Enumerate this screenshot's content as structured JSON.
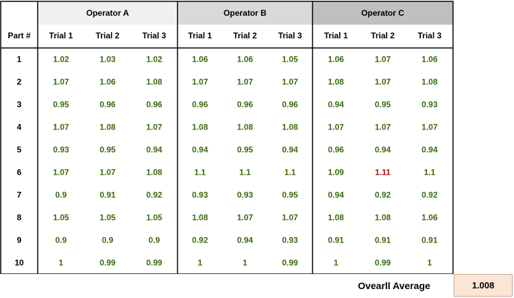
{
  "table": {
    "part_header": "Part #",
    "operators": [
      {
        "name": "Operator A",
        "header_color": "#f0f0f0"
      },
      {
        "name": "Operator B",
        "header_color": "#d9d9d9"
      },
      {
        "name": "Operator C",
        "header_color": "#bfbfbf"
      }
    ],
    "trial_labels": [
      "Trial 1",
      "Trial 2",
      "Trial 3"
    ],
    "value_color": "#3a6b0f",
    "flag_color": "#a01010",
    "rows": [
      {
        "part": "1",
        "values": [
          [
            "1.02",
            "1.03",
            "1.02"
          ],
          [
            "1.06",
            "1.06",
            "1.05"
          ],
          [
            "1.06",
            "1.07",
            "1.06"
          ]
        ]
      },
      {
        "part": "2",
        "values": [
          [
            "1.07",
            "1.06",
            "1.08"
          ],
          [
            "1.07",
            "1.07",
            "1.07"
          ],
          [
            "1.08",
            "1.07",
            "1.08"
          ]
        ]
      },
      {
        "part": "3",
        "values": [
          [
            "0.95",
            "0.96",
            "0.96"
          ],
          [
            "0.96",
            "0.96",
            "0.96"
          ],
          [
            "0.94",
            "0.95",
            "0.93"
          ]
        ]
      },
      {
        "part": "4",
        "values": [
          [
            "1.07",
            "1.08",
            "1.07"
          ],
          [
            "1.08",
            "1.08",
            "1.08"
          ],
          [
            "1.07",
            "1.07",
            "1.07"
          ]
        ]
      },
      {
        "part": "5",
        "values": [
          [
            "0.93",
            "0.95",
            "0.94"
          ],
          [
            "0.94",
            "0.95",
            "0.94"
          ],
          [
            "0.96",
            "0.94",
            "0.94"
          ]
        ]
      },
      {
        "part": "6",
        "values": [
          [
            "1.07",
            "1.07",
            "1.08"
          ],
          [
            "1.1",
            "1.1",
            "1.1"
          ],
          [
            "1.09",
            "1.11",
            "1.1"
          ]
        ],
        "flagged": [
          [
            2,
            1
          ]
        ]
      },
      {
        "part": "7",
        "values": [
          [
            "0.9",
            "0.91",
            "0.92"
          ],
          [
            "0.93",
            "0.93",
            "0.95"
          ],
          [
            "0.94",
            "0.92",
            "0.92"
          ]
        ]
      },
      {
        "part": "8",
        "values": [
          [
            "1.05",
            "1.05",
            "1.05"
          ],
          [
            "1.08",
            "1.07",
            "1.07"
          ],
          [
            "1.08",
            "1.08",
            "1.06"
          ]
        ]
      },
      {
        "part": "9",
        "values": [
          [
            "0.9",
            "0.9",
            "0.9"
          ],
          [
            "0.92",
            "0.94",
            "0.93"
          ],
          [
            "0.91",
            "0.91",
            "0.91"
          ]
        ]
      },
      {
        "part": "10",
        "values": [
          [
            "1",
            "0.99",
            "0.99"
          ],
          [
            "1",
            "1",
            "0.99"
          ],
          [
            "1",
            "0.99",
            "1"
          ]
        ]
      }
    ]
  },
  "summary": {
    "label": "Ovearll Average",
    "value": "1.008",
    "box_color": "#fbe5d6"
  }
}
